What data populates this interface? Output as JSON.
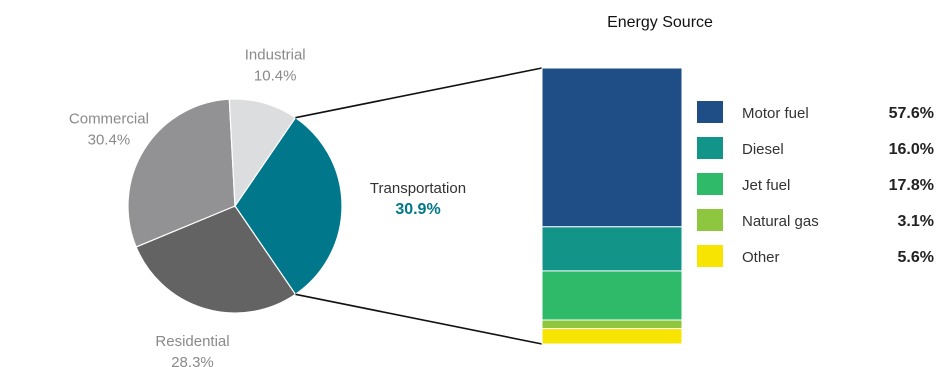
{
  "chart_data": [
    {
      "type": "pie",
      "slices": [
        {
          "name": "Transportation",
          "pct_label": "30.9%",
          "value": 30.9,
          "color": "#00778b",
          "focus": true
        },
        {
          "name": "Residential",
          "pct_label": "28.3%",
          "value": 28.3,
          "color": "#636363"
        },
        {
          "name": "Commercial",
          "pct_label": "30.4%",
          "value": 30.4,
          "color": "#929295"
        },
        {
          "name": "Industrial",
          "pct_label": "10.4%",
          "value": 10.4,
          "color": "#dcdddf"
        }
      ]
    },
    {
      "type": "bar",
      "stacked": true,
      "title": "Energy Source",
      "series": [
        {
          "name": "Motor fuel",
          "value_label": "57.6%",
          "value": 57.6,
          "color": "#1f4e87"
        },
        {
          "name": "Diesel",
          "value_label": "16.0%",
          "value": 16.0,
          "color": "#129488"
        },
        {
          "name": "Jet fuel",
          "value_label": "17.8%",
          "value": 17.8,
          "color": "#2fba6a"
        },
        {
          "name": "Natural gas",
          "value_label": "3.1%",
          "value": 3.1,
          "color": "#8ec63f"
        },
        {
          "name": "Other",
          "value_label": "5.6%",
          "value": 5.6,
          "color": "#f7e400"
        }
      ]
    }
  ]
}
